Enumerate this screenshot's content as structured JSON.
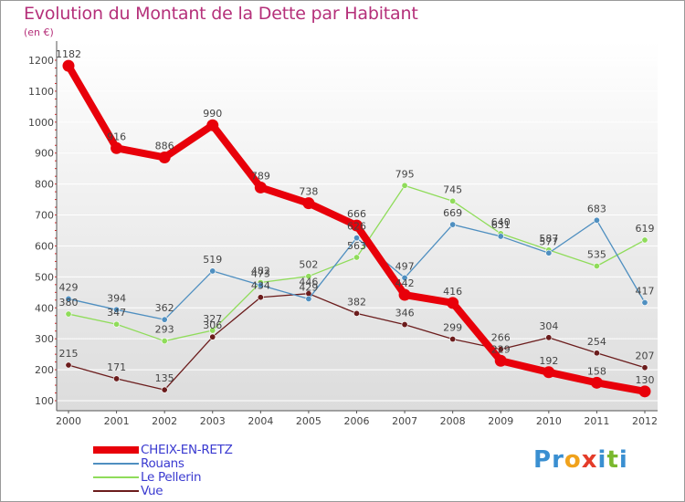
{
  "title": "Evolution du Montant de la Dette par Habitant",
  "unit_label": "(en €)",
  "logo": {
    "text": "Proxiti",
    "colors": [
      "#3a8fd1",
      "#3a8fd1",
      "#f0a21c",
      "#e43c2a",
      "#3a8fd1",
      "#7ab82e",
      "#3a8fd1"
    ]
  },
  "chart_data": {
    "type": "line",
    "title": "Evolution du Montant de la Dette par Habitant",
    "ylabel": "(en €)",
    "xlabel": "",
    "x": [
      "2000",
      "2001",
      "2002",
      "2003",
      "2004",
      "2005",
      "2006",
      "2007",
      "2008",
      "2009",
      "2010",
      "2011",
      "2012"
    ],
    "ylim": [
      100,
      1200
    ],
    "yticks": [
      "100",
      "200",
      "300",
      "400",
      "500",
      "600",
      "700",
      "800",
      "900",
      "1000",
      "1100",
      "1200"
    ],
    "grid": "horizontal",
    "legend_position": "bottom-left",
    "series": [
      {
        "name": "CHEIX-EN-RETZ",
        "color": "#e8000a",
        "values": [
          1182,
          916,
          886,
          990,
          789,
          738,
          666,
          442,
          416,
          229,
          192,
          158,
          130
        ],
        "labels": [
          "1182",
          "916",
          "886",
          "990",
          "789",
          "738",
          "666",
          "442",
          "416",
          "229",
          "192",
          "158",
          "130"
        ]
      },
      {
        "name": "Rouans",
        "color": "#4f8fc0",
        "values": [
          429,
          394,
          362,
          519,
          473,
          429,
          626,
          497,
          669,
          631,
          577,
          683,
          417
        ],
        "labels": [
          "429",
          "394",
          "362",
          "519",
          "473",
          "429",
          "626",
          "497",
          "669",
          "631",
          "577",
          "683",
          "417"
        ]
      },
      {
        "name": "Le Pellerin",
        "color": "#8fdc5a",
        "values": [
          380,
          347,
          293,
          327,
          482,
          502,
          563,
          795,
          745,
          640,
          587,
          535,
          619
        ],
        "labels": [
          "380",
          "347",
          "293",
          "327",
          "482",
          "502",
          "563",
          "795",
          "745",
          "640",
          "587",
          "535",
          "619"
        ]
      },
      {
        "name": "Vue",
        "color": "#6b1c1c",
        "values": [
          215,
          171,
          135,
          306,
          434,
          446,
          382,
          346,
          299,
          266,
          304,
          254,
          207
        ],
        "labels": [
          "215",
          "171",
          "135",
          "306",
          "434",
          "446",
          "382",
          "346",
          "299",
          "266",
          "304",
          "254",
          "207"
        ]
      }
    ]
  }
}
